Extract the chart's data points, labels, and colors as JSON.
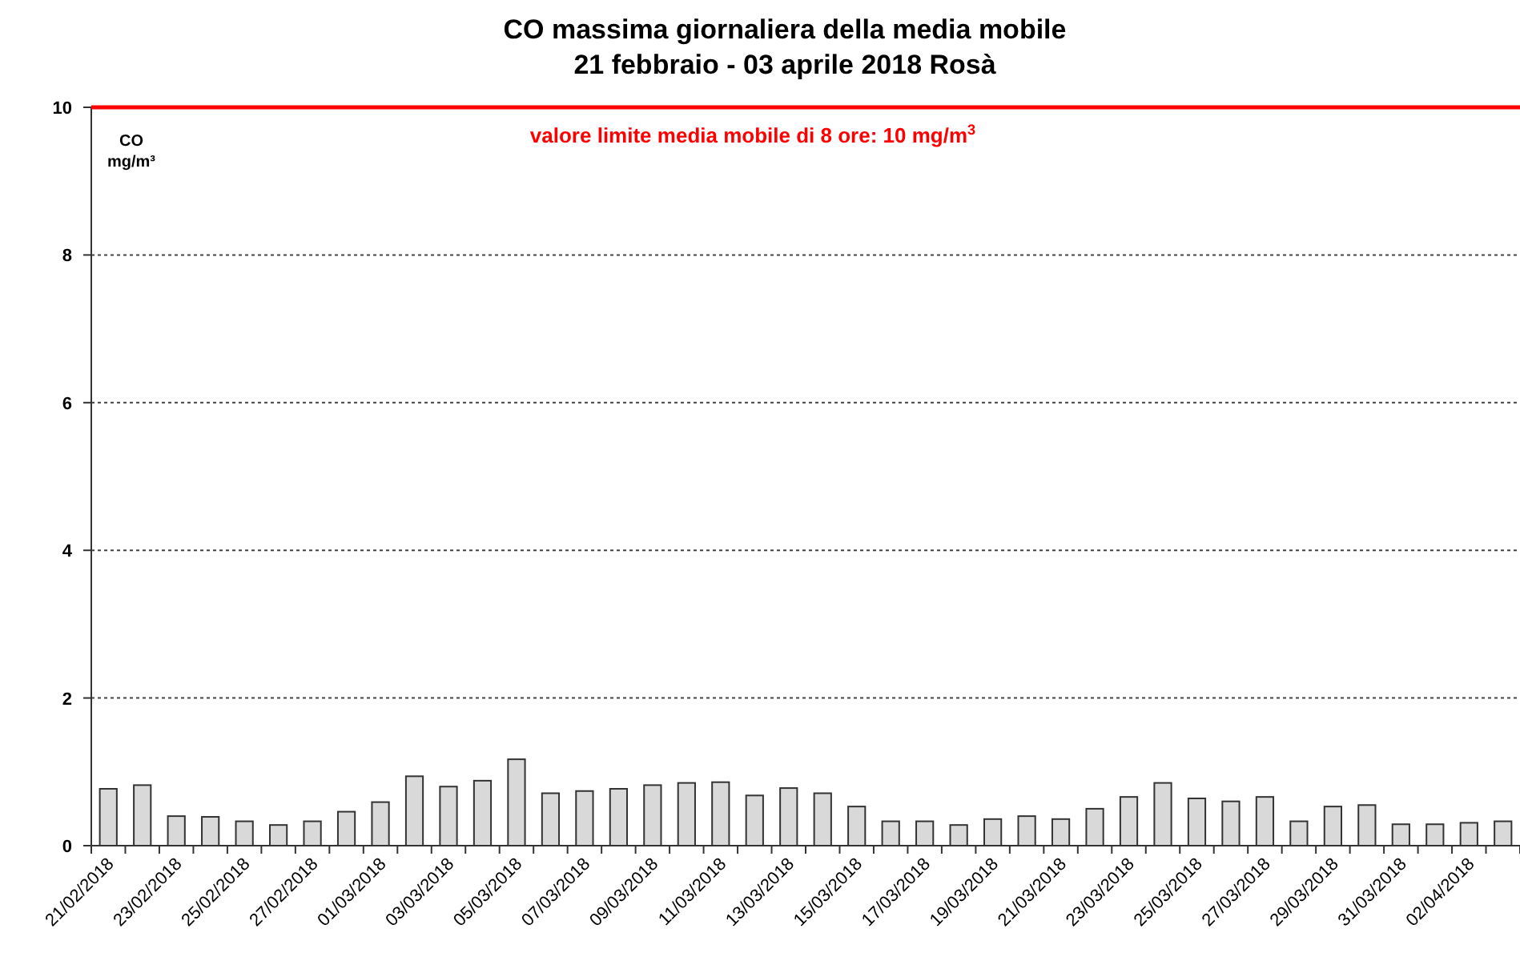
{
  "chart_data": {
    "type": "bar",
    "title": "CO massima giornaliera della media mobile",
    "subtitle": "21 febbraio - 03 aprile 2018 Rosà",
    "ylabel": "CO\nmg/m³",
    "categories": [
      "21/02/2018",
      null,
      "23/02/2018",
      null,
      "25/02/2018",
      null,
      "27/02/2018",
      null,
      "01/03/2018",
      null,
      "03/03/2018",
      null,
      "05/03/2018",
      null,
      "07/03/2018",
      null,
      "09/03/2018",
      null,
      "11/03/2018",
      null,
      "13/03/2018",
      null,
      "15/03/2018",
      null,
      "17/03/2018",
      null,
      "19/03/2018",
      null,
      "21/03/2018",
      null,
      "23/03/2018",
      null,
      "25/03/2018",
      null,
      "27/03/2018",
      null,
      "29/03/2018",
      null,
      "31/03/2018",
      null,
      "02/04/2018",
      null
    ],
    "values": [
      0.77,
      0.82,
      0.4,
      0.39,
      0.33,
      0.28,
      0.33,
      0.46,
      0.59,
      0.94,
      0.8,
      0.88,
      1.17,
      0.71,
      0.74,
      0.77,
      0.82,
      0.85,
      0.86,
      0.68,
      0.78,
      0.71,
      0.53,
      0.33,
      0.33,
      0.28,
      0.36,
      0.4,
      0.36,
      0.5,
      0.66,
      0.85,
      0.64,
      0.6,
      0.66,
      0.33,
      0.53,
      0.55,
      0.29,
      0.29,
      0.31,
      0.33
    ],
    "color": "#d9d9d9",
    "ylim": [
      0,
      10
    ],
    "yticks": [
      0,
      2,
      4,
      6,
      8,
      10
    ],
    "grid": "y",
    "ref_lines": [
      {
        "axis": "y",
        "value": 10,
        "label": "valore limite media mobile di 8 ore: 10 mg/m$^{3}$",
        "color": "#ff0000"
      }
    ]
  }
}
